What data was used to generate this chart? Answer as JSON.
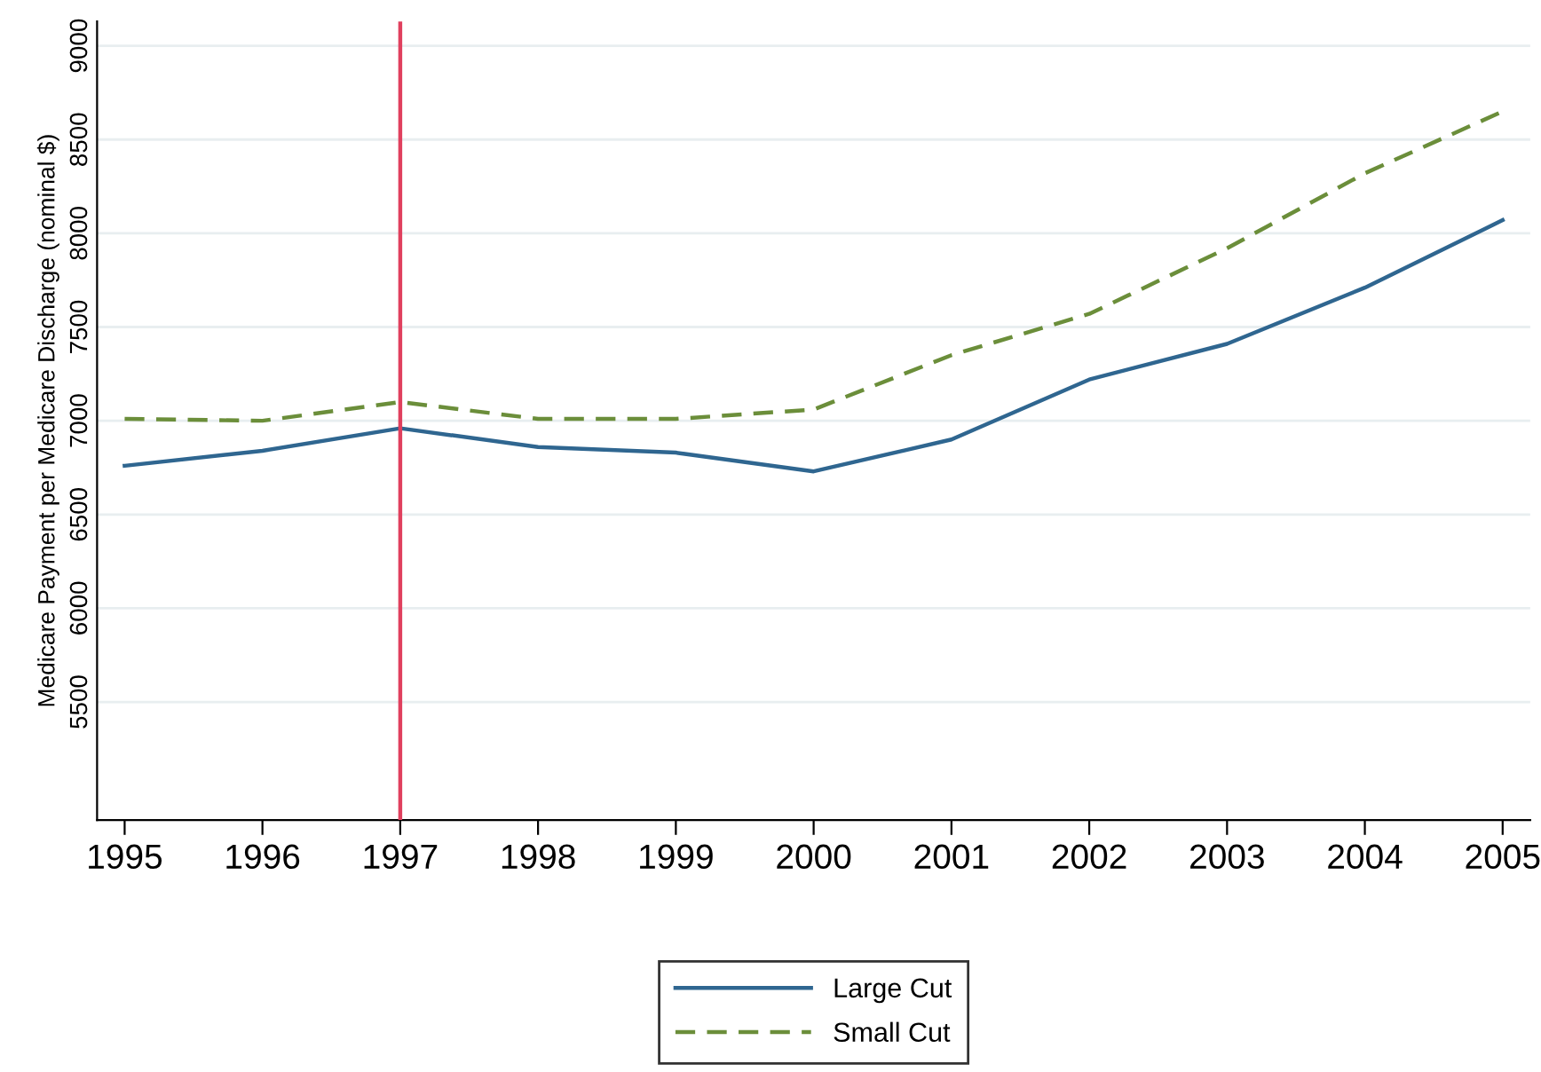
{
  "chart_data": {
    "type": "line",
    "ylabel": "Medicare Payment per Medicare Discharge (nominal $)",
    "x": [
      1995,
      1996,
      1997,
      1998,
      1999,
      2000,
      2001,
      2002,
      2003,
      2004,
      2005
    ],
    "series": [
      {
        "name": "Large Cut",
        "color": "#2f6690",
        "line_style": "solid",
        "values": [
          6760,
          6840,
          6960,
          6860,
          6830,
          6730,
          6900,
          7220,
          7410,
          7710,
          8070
        ]
      },
      {
        "name": "Small Cut",
        "color": "#6b8e3a",
        "line_style": "dashed",
        "values": [
          7010,
          7000,
          7100,
          7010,
          7010,
          7060,
          7350,
          7570,
          7920,
          8320,
          8650
        ]
      }
    ],
    "xlim": [
      1994.8,
      2005.2
    ],
    "xticks": [
      1995,
      1996,
      1997,
      1998,
      1999,
      2000,
      2001,
      2002,
      2003,
      2004,
      2005
    ],
    "ylim": [
      4870,
      9130
    ],
    "yticks": [
      5500,
      6000,
      6500,
      7000,
      7500,
      8000,
      8500,
      9000
    ],
    "ref_lines": [
      {
        "axis": "x",
        "value": 1997,
        "color": "#e0405e"
      }
    ],
    "grid": "y",
    "legend": "bottom"
  }
}
